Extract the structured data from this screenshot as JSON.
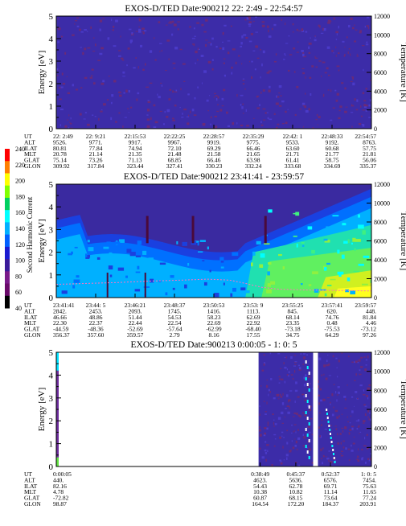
{
  "chart_data": {
    "type": "heatmap",
    "colorbar": {
      "label": "Second Harmonic Current",
      "ticks": [
        "40",
        "60",
        "80",
        "100",
        "120",
        "140",
        "160",
        "180",
        "200",
        "220",
        "240"
      ],
      "colors": [
        "#000000",
        "#6a0a6a",
        "#7a1a8a",
        "#3a1a9a",
        "#1a1ad0",
        "#0060ff",
        "#00b0ff",
        "#00ffff",
        "#00d060",
        "#80ff00",
        "#ffff00",
        "#ff8000",
        "#ff0000"
      ]
    },
    "panels": [
      {
        "title": "EXOS-D/TED   Date:900212  22: 2:49 - 22:54:57",
        "ylabel": "Energy [eV]",
        "ylabel2": "Temperature [K]",
        "ylim": [
          0,
          5
        ],
        "yticks": [
          "0",
          "1",
          "2",
          "3",
          "4",
          "5"
        ],
        "y2lim": [
          0,
          12000
        ],
        "y2ticks": [
          "0",
          "2000",
          "4000",
          "6000",
          "8000",
          "10000",
          "12000"
        ],
        "orbit_labels": [
          "UT",
          "ALT",
          "ILAT",
          "MLT",
          "GLAT",
          "GLON"
        ],
        "columns": [
          {
            "t": 0,
            "UT": "22: 2:49",
            "ALT": "9526.",
            "ILAT": "80.81",
            "MLT": "20.78",
            "GLAT": "75.14",
            "GLON": "309.92"
          },
          {
            "t": 0.125,
            "UT": "22: 9:21",
            "ALT": "9771.",
            "ILAT": "77.84",
            "MLT": "21.14",
            "GLAT": "73.26",
            "GLON": "317.84"
          },
          {
            "t": 0.25,
            "UT": "22:15:53",
            "ALT": "9917.",
            "ILAT": "74.94",
            "MLT": "21.35",
            "GLAT": "71.13",
            "GLON": "323.44"
          },
          {
            "t": 0.375,
            "UT": "22:22:25",
            "ALT": "9967.",
            "ILAT": "72.10",
            "MLT": "21.48",
            "GLAT": "68.85",
            "GLON": "327.41"
          },
          {
            "t": 0.5,
            "UT": "22:28:57",
            "ALT": "9919.",
            "ILAT": "69.29",
            "MLT": "21.58",
            "GLAT": "66.46",
            "GLON": "330.23"
          },
          {
            "t": 0.625,
            "UT": "22:35:29",
            "ALT": "9775.",
            "ILAT": "66.46",
            "MLT": "21.65",
            "GLAT": "63.98",
            "GLON": "332.24"
          },
          {
            "t": 0.75,
            "UT": "22:42: 1",
            "ALT": "9533.",
            "ILAT": "63.60",
            "MLT": "21.71",
            "GLAT": "61.41",
            "GLON": "333.68"
          },
          {
            "t": 0.875,
            "UT": "22:48:33",
            "ALT": "9192.",
            "ILAT": "60.68",
            "MLT": "21.77",
            "GLAT": "58.75",
            "GLON": "334.69"
          },
          {
            "t": 1,
            "UT": "22:54:57",
            "ALT": "8763.",
            "ILAT": "57.75",
            "MLT": "21.81",
            "GLAT": "56.06",
            "GLON": "335.37"
          }
        ],
        "temperature": []
      },
      {
        "title": "EXOS-D/TED   Date:900212  23:41:41 - 23:59:57",
        "ylabel": "Energy [eV]",
        "ylabel2": "Temperature [K]",
        "ylim": [
          0,
          5
        ],
        "yticks": [
          "0",
          "1",
          "2",
          "3",
          "4",
          "5"
        ],
        "y2lim": [
          0,
          12000
        ],
        "y2ticks": [
          "0",
          "2000",
          "4000",
          "6000",
          "8000",
          "10000",
          "12000"
        ],
        "orbit_labels": [
          "UT",
          "ALT",
          "ILAT",
          "MLT",
          "GLAT",
          "GLON"
        ],
        "columns": [
          {
            "t": 0,
            "UT": "23:41:41",
            "ALT": "2842.",
            "ILAT": "46.66",
            "MLT": "22.30",
            "GLAT": "-44.59",
            "GLON": "356.37"
          },
          {
            "t": 0.125,
            "UT": "23:44: 5",
            "ALT": "2453.",
            "ILAT": "48.86",
            "MLT": "22.37",
            "GLAT": "-48.36",
            "GLON": "357.60"
          },
          {
            "t": 0.25,
            "UT": "23:46:21",
            "ALT": "2093.",
            "ILAT": "51.44",
            "MLT": "22.44",
            "GLAT": "-52.69",
            "GLON": "359.57"
          },
          {
            "t": 0.375,
            "UT": "23:48:37",
            "ALT": "1745.",
            "ILAT": "54.53",
            "MLT": "22.54",
            "GLAT": "-57.64",
            "GLON": "2.79"
          },
          {
            "t": 0.5,
            "UT": "23:50:53",
            "ALT": "1416.",
            "ILAT": "58.23",
            "MLT": "22.69",
            "GLAT": "-62.99",
            "GLON": "8.16"
          },
          {
            "t": 0.625,
            "UT": "23:53: 9",
            "ALT": "1113.",
            "ILAT": "62.69",
            "MLT": "22.92",
            "GLAT": "-68.40",
            "GLON": "17.55"
          },
          {
            "t": 0.75,
            "UT": "23:55:25",
            "ALT": "845.",
            "ILAT": "68.14",
            "MLT": "23.35",
            "GLAT": "-73.18",
            "GLON": "34.75"
          },
          {
            "t": 0.875,
            "UT": "23:57:41",
            "ALT": "620.",
            "ILAT": "74.76",
            "MLT": "0.48",
            "GLAT": "-75.53",
            "GLON": "64.29"
          },
          {
            "t": 1,
            "UT": "23:59:57",
            "ALT": "448.",
            "ILAT": "81.84",
            "MLT": "4.46",
            "GLAT": "-73.12",
            "GLON": "97.26"
          }
        ],
        "temperature": [
          [
            0,
            1400
          ],
          [
            0.1,
            1500
          ],
          [
            0.2,
            1600
          ],
          [
            0.3,
            1750
          ],
          [
            0.4,
            1850
          ],
          [
            0.48,
            1950
          ],
          [
            0.55,
            1850
          ],
          [
            0.6,
            1500
          ],
          [
            0.65,
            1100
          ],
          [
            0.7,
            900
          ],
          [
            0.8,
            800
          ],
          [
            0.9,
            750
          ],
          [
            1,
            700
          ]
        ]
      },
      {
        "title": "EXOS-D/TED   Date:900213  0:00:05 - 1: 0: 5",
        "ylabel": "Energy [eV]",
        "ylabel2": "Temperature [K]",
        "ylim": [
          0,
          5
        ],
        "yticks": [
          "0",
          "1",
          "2",
          "3",
          "4",
          "5"
        ],
        "y2lim": [
          0,
          12000
        ],
        "y2ticks": [
          "0",
          "2000",
          "4000",
          "6000",
          "8000",
          "10000",
          "12000"
        ],
        "orbit_labels": [
          "UT",
          "ALT",
          "ILAT",
          "MLT",
          "GLAT",
          "GLON"
        ],
        "columns": [
          {
            "t": 0,
            "UT": "0:00:05",
            "ALT": "440.",
            "ILAT": "82.16",
            "MLT": "4.78",
            "GLAT": "-72.82",
            "GLON": "98.87"
          },
          {
            "t": 0.647,
            "UT": "0:38:49",
            "ALT": "4623.",
            "ILAT": "54.43",
            "MLT": "10.38",
            "GLAT": "60.87",
            "GLON": "164.54"
          },
          {
            "t": 0.76,
            "UT": "0:45:37",
            "ALT": "5636.",
            "ILAT": "62.78",
            "MLT": "10.82",
            "GLAT": "68.15",
            "GLON": "172.20"
          },
          {
            "t": 0.87,
            "UT": "0:52:37",
            "ALT": "6576.",
            "ILAT": "69.71",
            "MLT": "11.14",
            "GLAT": "73.64",
            "GLON": "184.37"
          },
          {
            "t": 1,
            "UT": "1: 0: 5",
            "ALT": "7454.",
            "ILAT": "75.63",
            "MLT": "11.65",
            "GLAT": "77.24",
            "GLON": "203.91"
          }
        ],
        "temperature": []
      }
    ]
  }
}
